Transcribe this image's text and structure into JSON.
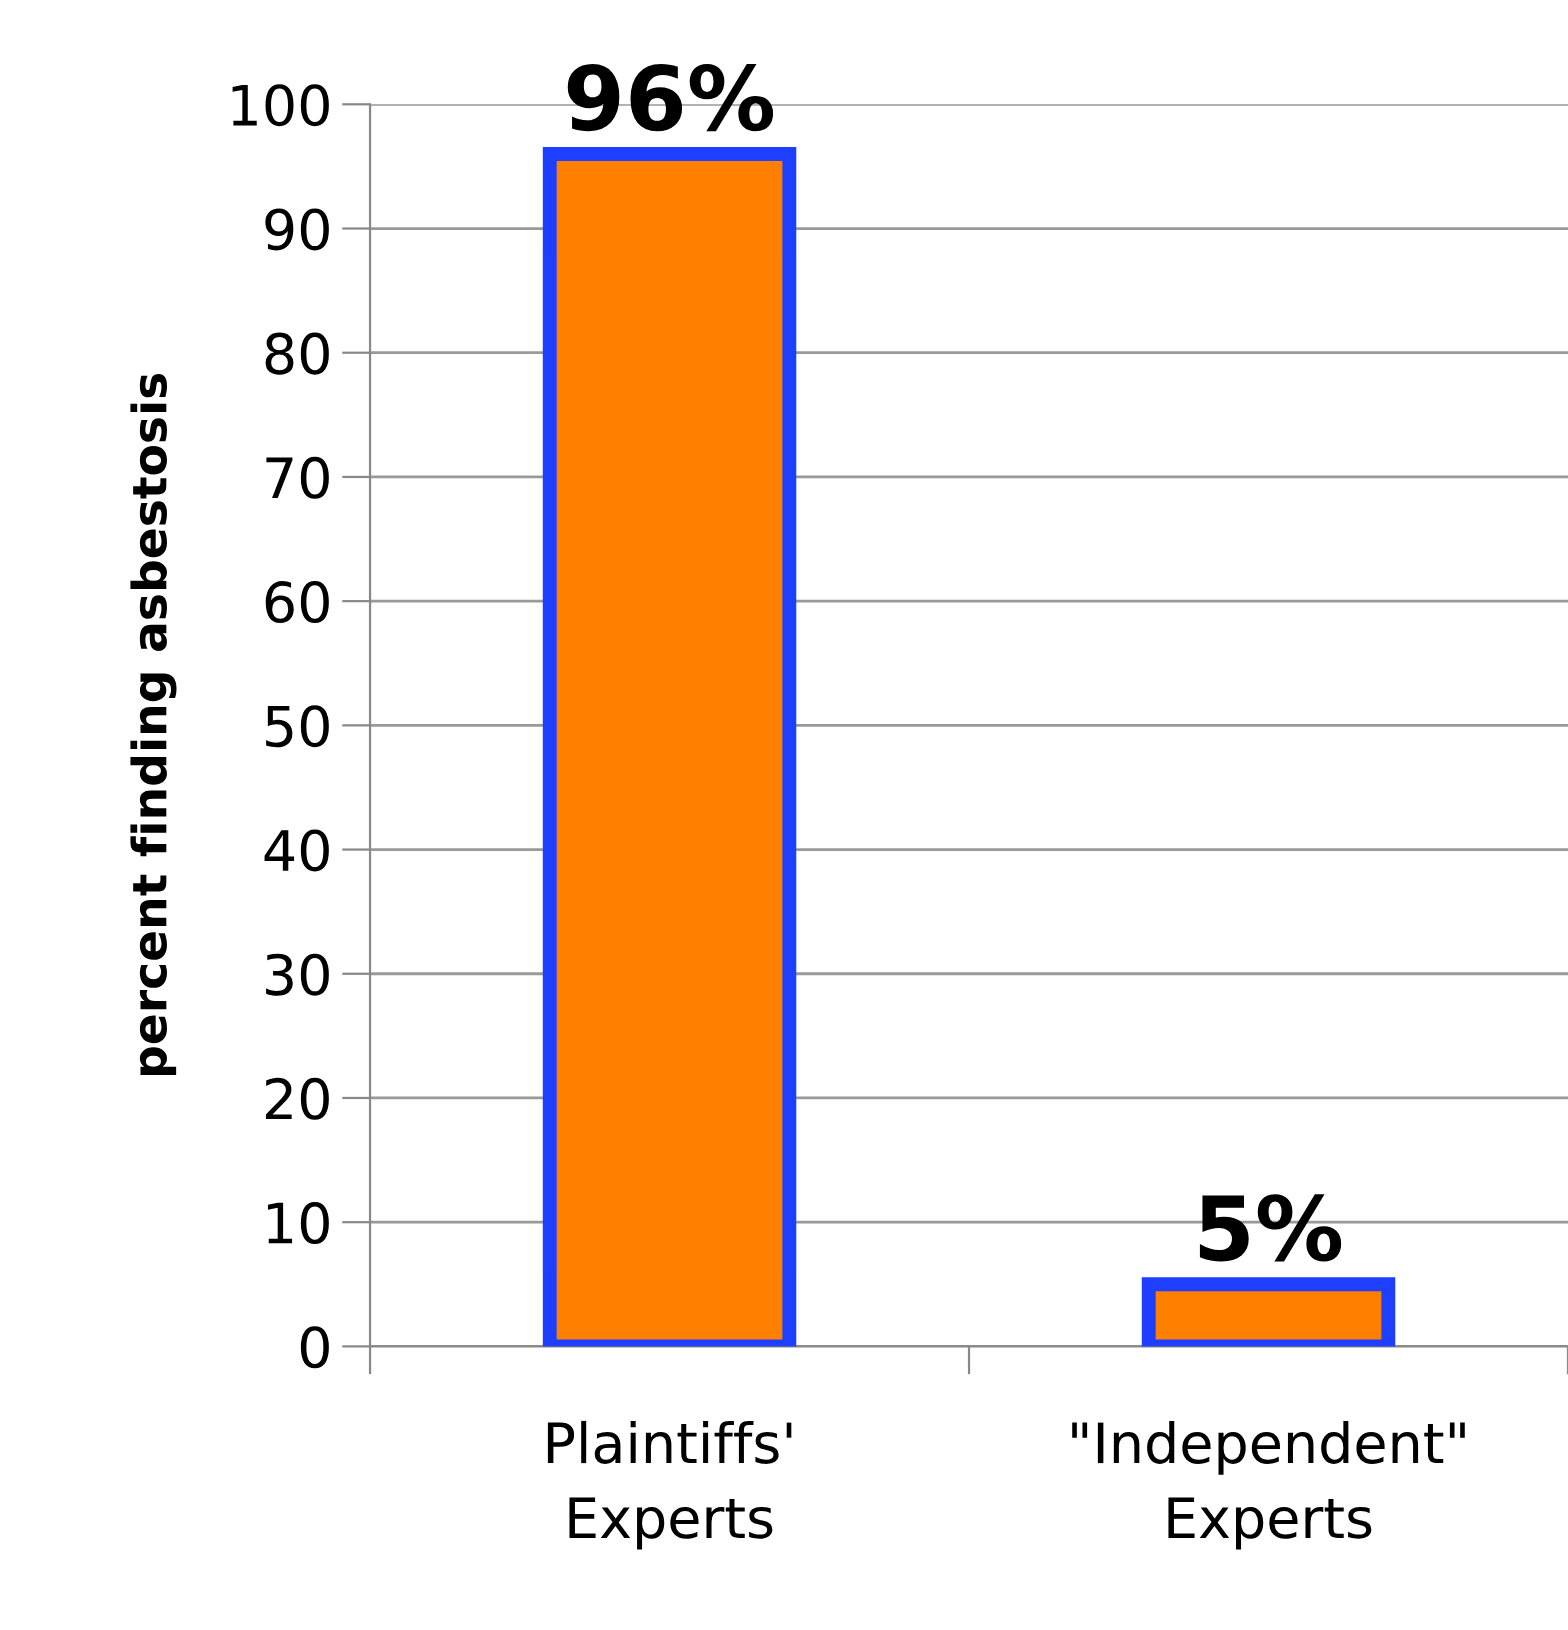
{
  "chart_data": {
    "type": "bar",
    "ylabel": "percent finding asbestosis",
    "categories": [
      "Plaintiffs'\nExperts",
      "\"Independent\"\nExperts"
    ],
    "values": [
      96,
      5
    ],
    "value_labels": [
      "96%",
      "5%"
    ],
    "color": "#ff7f00",
    "ylim": [
      0,
      100
    ],
    "yticks": [
      0,
      10,
      20,
      30,
      40,
      50,
      60,
      70,
      80,
      90,
      100
    ],
    "grid": "y"
  }
}
